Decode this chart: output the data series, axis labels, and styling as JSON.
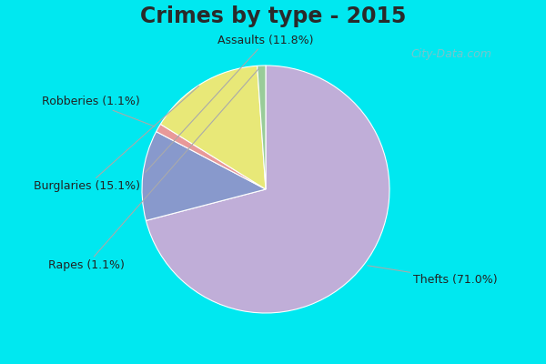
{
  "title": "Crimes by type - 2015",
  "labels": [
    "Thefts (71.0%)",
    "Assaults (11.8%)",
    "Robberies (1.1%)",
    "Burglaries (15.1%)",
    "Rapes (1.1%)"
  ],
  "values": [
    71.0,
    11.8,
    1.1,
    15.1,
    1.1
  ],
  "colors": [
    "#c0aed8",
    "#8899cc",
    "#e89999",
    "#e8e878",
    "#99cc99"
  ],
  "background_cyan": "#00e8f0",
  "background_main": "#d4eddc",
  "title_fontsize": 17,
  "label_fontsize": 9,
  "startangle": 90,
  "watermark": "City-Data.com"
}
